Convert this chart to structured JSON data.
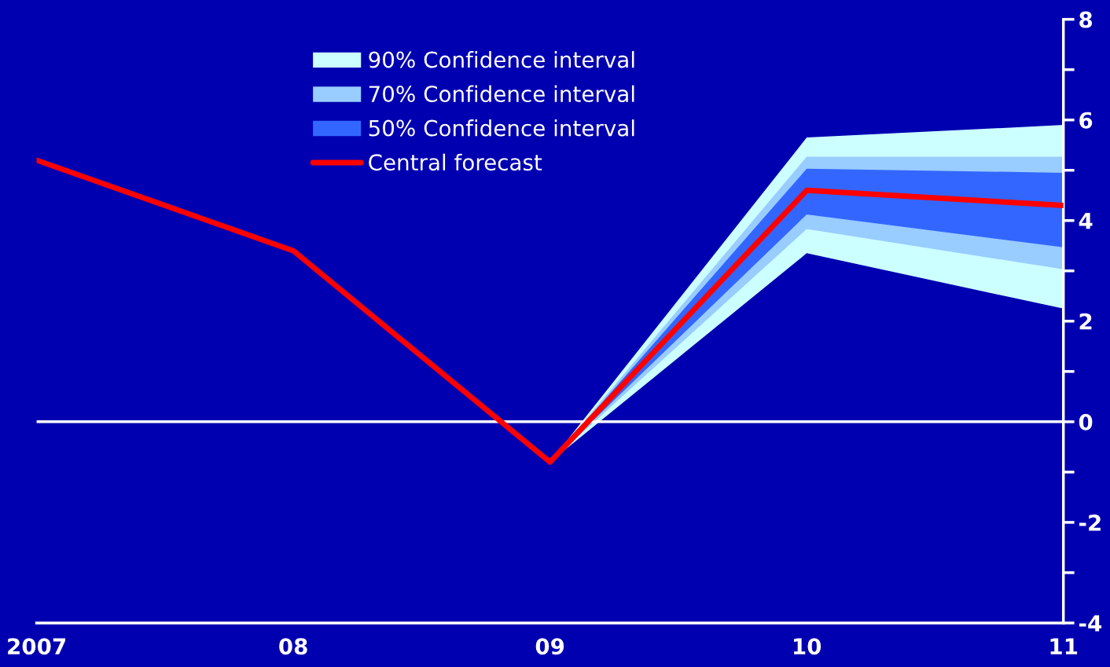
{
  "chart_data": {
    "type": "line",
    "categories": [
      "2007",
      "08",
      "09",
      "10",
      "11"
    ],
    "series": [
      {
        "name": "90% Confidence interval",
        "type": "line",
        "color": "#ccffff",
        "values": [
          null,
          null,
          null,
          null,
          null
        ],
        "upper": [
          null,
          null,
          -0.8,
          5.65,
          5.9
        ],
        "lower": [
          null,
          null,
          -0.8,
          3.35,
          2.25
        ]
      },
      {
        "name": "70% Confidence interval",
        "type": "line",
        "color": "#99ccff",
        "values": [
          null,
          null,
          null,
          null,
          null
        ],
        "upper": [
          null,
          null,
          -0.8,
          5.27,
          5.27
        ],
        "lower": [
          null,
          null,
          -0.8,
          3.83,
          3.03
        ]
      },
      {
        "name": "50% Confidence interval",
        "type": "line",
        "color": "#3366ff",
        "values": [
          null,
          null,
          null,
          null,
          null
        ],
        "upper": [
          null,
          null,
          -0.8,
          5.03,
          4.95
        ],
        "lower": [
          null,
          null,
          -0.8,
          4.12,
          3.47
        ]
      },
      {
        "name": "Central forecast",
        "type": "line",
        "color": "#ff0000",
        "values": [
          5.2,
          3.4,
          -0.8,
          4.6,
          4.3
        ]
      }
    ],
    "ylim": [
      -4,
      8
    ],
    "yticks": [
      -4,
      {
        "value": -3,
        "label": null
      },
      -2,
      {
        "value": -1,
        "label": null
      },
      0,
      {
        "value": 1,
        "label": null
      },
      2,
      {
        "value": 3,
        "label": null
      },
      4,
      {
        "value": 5,
        "label": null
      },
      6,
      {
        "value": 7,
        "label": null
      },
      8
    ],
    "ref_lines": [
      {
        "axis": "y",
        "value": 0,
        "color": "#ffffff"
      }
    ],
    "grid": false,
    "legend": "top left",
    "marker": "none",
    "line_style": "solid"
  }
}
